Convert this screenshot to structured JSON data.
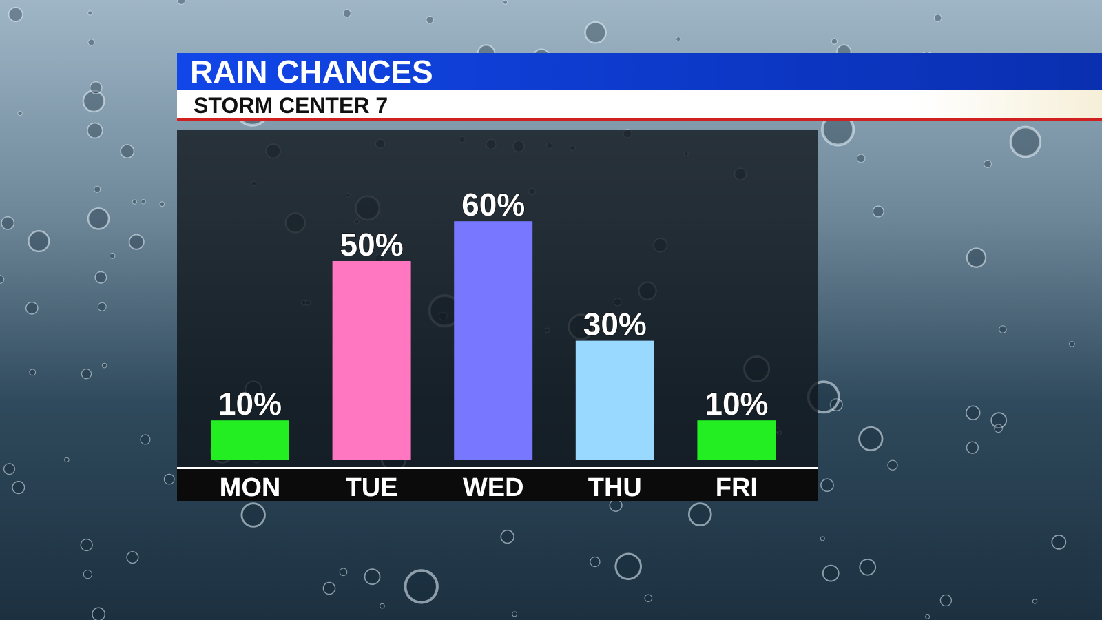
{
  "chart_data": {
    "type": "bar",
    "title": "RAIN CHANCES",
    "subtitle": "STORM CENTER 7",
    "categories": [
      "MON",
      "TUE",
      "WED",
      "THU",
      "FRI"
    ],
    "values": [
      10,
      50,
      60,
      30,
      10
    ],
    "value_labels": [
      "10%",
      "50%",
      "60%",
      "30%",
      "10%"
    ],
    "colors": [
      "#22ee22",
      "#ff77c0",
      "#7777ff",
      "#99d8ff",
      "#22ee22"
    ]
  }
}
